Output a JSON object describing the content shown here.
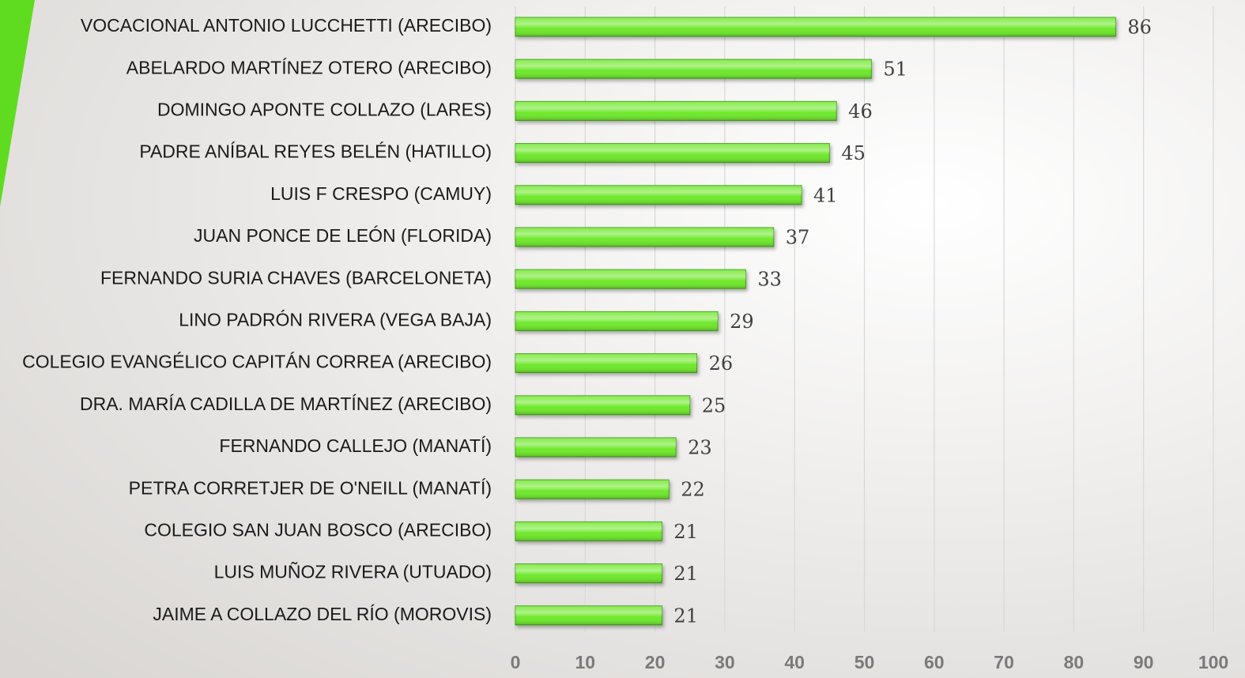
{
  "chart_data": {
    "type": "bar",
    "orientation": "horizontal",
    "categories": [
      "VOCACIONAL ANTONIO LUCCHETTI (ARECIBO)",
      "ABELARDO MARTÍNEZ OTERO (ARECIBO)",
      "DOMINGO APONTE COLLAZO (LARES)",
      "PADRE ANÍBAL REYES BELÉN (HATILLO)",
      "LUIS F CRESPO (CAMUY)",
      "JUAN PONCE DE LEÓN (FLORIDA)",
      "FERNANDO SURIA CHAVES (BARCELONETA)",
      "LINO PADRÓN RIVERA (VEGA BAJA)",
      "COLEGIO EVANGÉLICO CAPITÁN CORREA (ARECIBO)",
      "DRA. MARÍA CADILLA DE MARTÍNEZ (ARECIBO)",
      "FERNANDO CALLEJO (MANATÍ)",
      "PETRA CORRETJER DE O'NEILL (MANATÍ)",
      "COLEGIO SAN JUAN BOSCO (ARECIBO)",
      "LUIS MUÑOZ RIVERA (UTUADO)",
      "JAIME A COLLAZO DEL RÍO (MOROVIS)"
    ],
    "values": [
      86,
      51,
      46,
      45,
      41,
      37,
      33,
      29,
      26,
      25,
      23,
      22,
      21,
      21,
      21
    ],
    "color": "#6ee82a",
    "xlim": [
      0,
      100
    ],
    "xticks": [
      0,
      10,
      20,
      30,
      40,
      50,
      60,
      70,
      80,
      90,
      100
    ],
    "grid": true
  }
}
